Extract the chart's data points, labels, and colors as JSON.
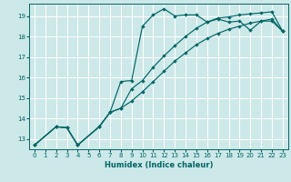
{
  "xlabel": "Humidex (Indice chaleur)",
  "bg_color": "#cde8e8",
  "line_color": "#006666",
  "grid_color": "#ffffff",
  "xlim": [
    -0.5,
    23.5
  ],
  "ylim": [
    12.5,
    19.6
  ],
  "xticks": [
    0,
    1,
    2,
    3,
    4,
    5,
    6,
    7,
    8,
    9,
    10,
    11,
    12,
    13,
    14,
    15,
    16,
    17,
    18,
    19,
    20,
    21,
    22,
    23
  ],
  "yticks": [
    13,
    14,
    15,
    16,
    17,
    18,
    19
  ],
  "line1_x": [
    0,
    2,
    3,
    4,
    6,
    7,
    8,
    9,
    10,
    11,
    12,
    13,
    14,
    15,
    16,
    17,
    18,
    19,
    20,
    21,
    22,
    23
  ],
  "line1_y": [
    12.7,
    13.6,
    13.55,
    12.7,
    13.6,
    14.3,
    15.8,
    15.85,
    18.5,
    19.05,
    19.35,
    19.0,
    19.05,
    19.05,
    18.7,
    18.85,
    18.7,
    18.75,
    18.3,
    18.75,
    18.75,
    18.25
  ],
  "line2_x": [
    0,
    2,
    3,
    4,
    6,
    7,
    8,
    9,
    10,
    11,
    12,
    13,
    14,
    15,
    16,
    17,
    18,
    19,
    20,
    21,
    22,
    23
  ],
  "line2_y": [
    12.7,
    13.6,
    13.55,
    12.7,
    13.6,
    14.3,
    14.5,
    14.85,
    15.3,
    15.8,
    16.3,
    16.8,
    17.2,
    17.6,
    17.9,
    18.15,
    18.35,
    18.5,
    18.65,
    18.75,
    18.85,
    18.25
  ],
  "line3_x": [
    0,
    2,
    3,
    4,
    6,
    7,
    8,
    9,
    10,
    11,
    12,
    13,
    14,
    15,
    16,
    17,
    18,
    19,
    20,
    21,
    22,
    23
  ],
  "line3_y": [
    12.7,
    13.6,
    13.55,
    12.7,
    13.6,
    14.3,
    14.5,
    15.45,
    15.85,
    16.5,
    17.05,
    17.55,
    18.0,
    18.4,
    18.7,
    18.9,
    18.95,
    19.05,
    19.1,
    19.15,
    19.2,
    18.25
  ]
}
